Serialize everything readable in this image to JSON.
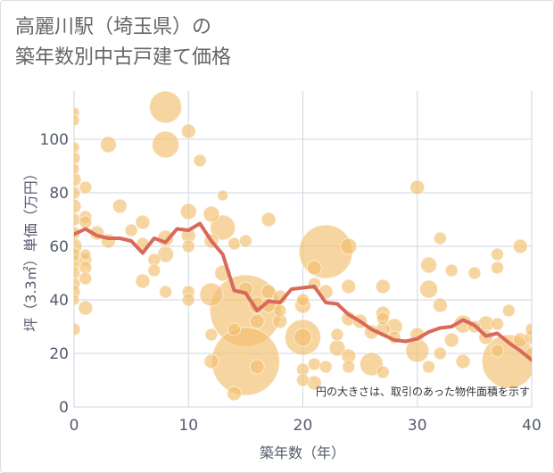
{
  "title_lines": [
    "高麗川駅（埼玉県）の",
    "築年数別中古戸建て価格"
  ],
  "chart_data": {
    "type": "scatter",
    "title": "高麗川駅（埼玉県）の築年数別中古戸建て価格",
    "xlabel": "築年数（年）",
    "ylabel": "坪（3.3㎡）単価（万円）",
    "xlim": [
      0,
      40
    ],
    "ylim": [
      0,
      118
    ],
    "xticks": [
      0,
      10,
      20,
      30,
      40
    ],
    "yticks": [
      0,
      20,
      40,
      60,
      80,
      100
    ],
    "grid": true,
    "note": "円の大きさは、取引のあった物件面積を示す",
    "colors": {
      "bubble": "#f2bf6d",
      "line": "#d9695a"
    },
    "series": [
      {
        "type": "bubble",
        "points": [
          {
            "x": 0,
            "y": 110,
            "r": 6
          },
          {
            "x": 0,
            "y": 107,
            "r": 6
          },
          {
            "x": 0,
            "y": 97,
            "r": 6
          },
          {
            "x": 0,
            "y": 93,
            "r": 7
          },
          {
            "x": 0,
            "y": 89,
            "r": 6
          },
          {
            "x": 0,
            "y": 85,
            "r": 8
          },
          {
            "x": 0,
            "y": 80,
            "r": 7
          },
          {
            "x": 0,
            "y": 75,
            "r": 8
          },
          {
            "x": 0,
            "y": 70,
            "r": 7
          },
          {
            "x": 0,
            "y": 65,
            "r": 7
          },
          {
            "x": 0,
            "y": 60,
            "r": 9
          },
          {
            "x": 0,
            "y": 57,
            "r": 7
          },
          {
            "x": 0,
            "y": 54,
            "r": 8
          },
          {
            "x": 0,
            "y": 50,
            "r": 7
          },
          {
            "x": 0,
            "y": 46,
            "r": 7
          },
          {
            "x": 0,
            "y": 43,
            "r": 7
          },
          {
            "x": 0,
            "y": 40,
            "r": 6
          },
          {
            "x": 0,
            "y": 29,
            "r": 7
          },
          {
            "x": 1,
            "y": 82,
            "r": 7
          },
          {
            "x": 1,
            "y": 71,
            "r": 7
          },
          {
            "x": 1,
            "y": 69,
            "r": 7
          },
          {
            "x": 1,
            "y": 57,
            "r": 6
          },
          {
            "x": 1,
            "y": 55,
            "r": 7
          },
          {
            "x": 1,
            "y": 52,
            "r": 7
          },
          {
            "x": 1,
            "y": 48,
            "r": 7
          },
          {
            "x": 1,
            "y": 37,
            "r": 8
          },
          {
            "x": 2,
            "y": 65,
            "r": 8
          },
          {
            "x": 3,
            "y": 98,
            "r": 9
          },
          {
            "x": 3,
            "y": 62,
            "r": 8
          },
          {
            "x": 4,
            "y": 75,
            "r": 8
          },
          {
            "x": 5,
            "y": 66,
            "r": 7
          },
          {
            "x": 6,
            "y": 69,
            "r": 8
          },
          {
            "x": 6,
            "y": 61,
            "r": 7
          },
          {
            "x": 6,
            "y": 47,
            "r": 8
          },
          {
            "x": 7,
            "y": 55,
            "r": 7
          },
          {
            "x": 7,
            "y": 51,
            "r": 7
          },
          {
            "x": 8,
            "y": 112,
            "r": 18
          },
          {
            "x": 8,
            "y": 98,
            "r": 15
          },
          {
            "x": 8,
            "y": 63,
            "r": 9
          },
          {
            "x": 8,
            "y": 57,
            "r": 9
          },
          {
            "x": 8,
            "y": 43,
            "r": 7
          },
          {
            "x": 10,
            "y": 103,
            "r": 8
          },
          {
            "x": 10,
            "y": 73,
            "r": 9
          },
          {
            "x": 10,
            "y": 64,
            "r": 8
          },
          {
            "x": 10,
            "y": 60,
            "r": 7
          },
          {
            "x": 10,
            "y": 43,
            "r": 7
          },
          {
            "x": 10,
            "y": 40,
            "r": 7
          },
          {
            "x": 11,
            "y": 92,
            "r": 7
          },
          {
            "x": 12,
            "y": 72,
            "r": 9
          },
          {
            "x": 12,
            "y": 62,
            "r": 8
          },
          {
            "x": 12,
            "y": 42,
            "r": 13
          },
          {
            "x": 12,
            "y": 27,
            "r": 7
          },
          {
            "x": 12,
            "y": 17,
            "r": 8
          },
          {
            "x": 13,
            "y": 79,
            "r": 6
          },
          {
            "x": 13,
            "y": 67,
            "r": 14
          },
          {
            "x": 13,
            "y": 50,
            "r": 9
          },
          {
            "x": 14,
            "y": 61,
            "r": 7
          },
          {
            "x": 14,
            "y": 29,
            "r": 7
          },
          {
            "x": 14,
            "y": 5,
            "r": 8
          },
          {
            "x": 15,
            "y": 62,
            "r": 7
          },
          {
            "x": 15,
            "y": 36,
            "r": 40
          },
          {
            "x": 15,
            "y": 17,
            "r": 38
          },
          {
            "x": 15,
            "y": 44,
            "r": 8
          },
          {
            "x": 16,
            "y": 38,
            "r": 9
          },
          {
            "x": 16,
            "y": 32,
            "r": 8
          },
          {
            "x": 16,
            "y": 15,
            "r": 8
          },
          {
            "x": 17,
            "y": 70,
            "r": 8
          },
          {
            "x": 17,
            "y": 43,
            "r": 8
          },
          {
            "x": 17,
            "y": 38,
            "r": 8
          },
          {
            "x": 18,
            "y": 41,
            "r": 8
          },
          {
            "x": 18,
            "y": 36,
            "r": 7
          },
          {
            "x": 18,
            "y": 32,
            "r": 8
          },
          {
            "x": 20,
            "y": 26,
            "r": 20
          },
          {
            "x": 20,
            "y": 26,
            "r": 10
          },
          {
            "x": 20,
            "y": 38,
            "r": 9
          },
          {
            "x": 20,
            "y": 40,
            "r": 7
          },
          {
            "x": 20,
            "y": 14,
            "r": 7
          },
          {
            "x": 20,
            "y": 10,
            "r": 7
          },
          {
            "x": 21,
            "y": 52,
            "r": 8
          },
          {
            "x": 21,
            "y": 46,
            "r": 7
          },
          {
            "x": 21,
            "y": 16,
            "r": 7
          },
          {
            "x": 21,
            "y": 9,
            "r": 8
          },
          {
            "x": 22,
            "y": 58,
            "r": 30
          },
          {
            "x": 22,
            "y": 43,
            "r": 8
          },
          {
            "x": 22,
            "y": 15,
            "r": 7
          },
          {
            "x": 23,
            "y": 27,
            "r": 7
          },
          {
            "x": 23,
            "y": 22,
            "r": 9
          },
          {
            "x": 24,
            "y": 60,
            "r": 9
          },
          {
            "x": 24,
            "y": 45,
            "r": 8
          },
          {
            "x": 24,
            "y": 33,
            "r": 8
          },
          {
            "x": 24,
            "y": 19,
            "r": 8
          },
          {
            "x": 24,
            "y": 15,
            "r": 7
          },
          {
            "x": 25,
            "y": 32,
            "r": 8
          },
          {
            "x": 26,
            "y": 28,
            "r": 8
          },
          {
            "x": 26,
            "y": 16,
            "r": 13
          },
          {
            "x": 27,
            "y": 45,
            "r": 8
          },
          {
            "x": 27,
            "y": 35,
            "r": 8
          },
          {
            "x": 27,
            "y": 33,
            "r": 7
          },
          {
            "x": 27,
            "y": 29,
            "r": 8
          },
          {
            "x": 27,
            "y": 13,
            "r": 7
          },
          {
            "x": 28,
            "y": 30,
            "r": 9
          },
          {
            "x": 28,
            "y": 26,
            "r": 7
          },
          {
            "x": 30,
            "y": 82,
            "r": 8
          },
          {
            "x": 30,
            "y": 21,
            "r": 13
          },
          {
            "x": 30,
            "y": 27,
            "r": 8
          },
          {
            "x": 31,
            "y": 53,
            "r": 9
          },
          {
            "x": 31,
            "y": 44,
            "r": 10
          },
          {
            "x": 31,
            "y": 15,
            "r": 7
          },
          {
            "x": 32,
            "y": 63,
            "r": 7
          },
          {
            "x": 32,
            "y": 38,
            "r": 8
          },
          {
            "x": 32,
            "y": 20,
            "r": 7
          },
          {
            "x": 33,
            "y": 51,
            "r": 7
          },
          {
            "x": 33,
            "y": 25,
            "r": 8
          },
          {
            "x": 34,
            "y": 31,
            "r": 10
          },
          {
            "x": 34,
            "y": 17,
            "r": 8
          },
          {
            "x": 35,
            "y": 50,
            "r": 7
          },
          {
            "x": 35,
            "y": 30,
            "r": 7
          },
          {
            "x": 36,
            "y": 31,
            "r": 9
          },
          {
            "x": 36,
            "y": 26,
            "r": 8
          },
          {
            "x": 37,
            "y": 57,
            "r": 7
          },
          {
            "x": 37,
            "y": 52,
            "r": 7
          },
          {
            "x": 37,
            "y": 31,
            "r": 7
          },
          {
            "x": 37,
            "y": 21,
            "r": 7
          },
          {
            "x": 38,
            "y": 17,
            "r": 30
          },
          {
            "x": 38,
            "y": 36,
            "r": 7
          },
          {
            "x": 39,
            "y": 60,
            "r": 8
          },
          {
            "x": 39,
            "y": 25,
            "r": 8
          },
          {
            "x": 40,
            "y": 29,
            "r": 7
          },
          {
            "x": 40,
            "y": 26,
            "r": 8
          },
          {
            "x": 40,
            "y": 20,
            "r": 7
          }
        ]
      },
      {
        "type": "line",
        "x": [
          0,
          1,
          2,
          3,
          4,
          5,
          6,
          7,
          8,
          9,
          10,
          11,
          12,
          13,
          14,
          15,
          16,
          17,
          18,
          19,
          20,
          21,
          22,
          23,
          24,
          25,
          26,
          27,
          28,
          29,
          30,
          31,
          32,
          33,
          34,
          35,
          36,
          37,
          38,
          39,
          40
        ],
        "y": [
          64.5,
          66.5,
          64,
          63,
          63,
          62,
          57.5,
          63,
          61.5,
          66.5,
          66,
          68.5,
          62,
          57,
          43.5,
          42.5,
          36,
          39.5,
          39,
          44,
          44.5,
          45,
          39,
          38.5,
          34.5,
          32,
          29,
          27,
          25,
          24.5,
          25.5,
          28,
          29.5,
          30,
          32.5,
          30.5,
          26.5,
          27.5,
          24,
          21,
          17.5
        ]
      }
    ]
  }
}
